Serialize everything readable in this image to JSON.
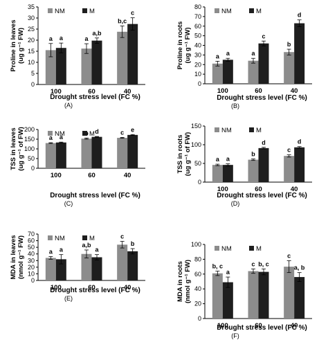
{
  "colors": {
    "NM": "#8c8c8c",
    "M": "#1e1e1e",
    "axis": "#000000"
  },
  "chart_data": [
    {
      "panel_label": "(A)",
      "type": "bar",
      "categories": [
        "100",
        "60",
        "40"
      ],
      "xlabel": "Drought stress level (FC %)",
      "ylabel": "Proline in leaves\n(ug g⁻¹ FW)",
      "ylim": [
        0,
        35
      ],
      "yticks": [
        0,
        5,
        10,
        15,
        20,
        25,
        30,
        35
      ],
      "legend": "top-left",
      "series": [
        {
          "name": "NM",
          "values": [
            15.5,
            16.2,
            23.8
          ],
          "errors": [
            3.0,
            2.2,
            2.6
          ],
          "letters": [
            "a",
            "a",
            "b,c"
          ]
        },
        {
          "name": "M",
          "values": [
            16.5,
            19.8,
            27.3
          ],
          "errors": [
            2.2,
            1.2,
            2.8
          ],
          "letters": [
            "a",
            "a,b",
            "c"
          ]
        }
      ]
    },
    {
      "panel_label": "(B)",
      "type": "bar",
      "categories": [
        "100",
        "60",
        "40"
      ],
      "xlabel": "Drought stress level (FC %)",
      "ylabel": "Proline in roots\n(ug g⁻¹ FW)",
      "ylim": [
        0,
        80
      ],
      "yticks": [
        0,
        10,
        20,
        30,
        40,
        50,
        60,
        70,
        80
      ],
      "legend": "top-left",
      "series": [
        {
          "name": "NM",
          "values": [
            21,
            24,
            33
          ],
          "errors": [
            2.5,
            2.5,
            3.0
          ],
          "letters": [
            "a",
            "a",
            "b"
          ]
        },
        {
          "name": "M",
          "values": [
            25,
            42,
            63
          ],
          "errors": [
            1.5,
            2.5,
            3.5
          ],
          "letters": [
            "a",
            "c",
            "d"
          ]
        }
      ]
    },
    {
      "panel_label": "(C)",
      "type": "bar",
      "categories": [
        "100",
        "60",
        "40"
      ],
      "xlabel": "Drought stress level (FC %)",
      "ylabel": "TSS in leaves\n(ug g⁻¹ of FW)",
      "ylim": [
        0,
        200
      ],
      "yticks": [
        0,
        50,
        100,
        150,
        200
      ],
      "legend": "top-left",
      "series": [
        {
          "name": "NM",
          "values": [
            130,
            153,
            157
          ],
          "errors": [
            2,
            3,
            2
          ],
          "letters": [
            "a",
            "b",
            "c"
          ]
        },
        {
          "name": "M",
          "values": [
            133,
            162,
            172
          ],
          "errors": [
            2,
            2,
            2
          ],
          "letters": [
            "a",
            "d",
            "e"
          ]
        }
      ]
    },
    {
      "panel_label": "(D)",
      "type": "bar",
      "categories": [
        "100",
        "60",
        "40"
      ],
      "xlabel": "Drought stress level (FC %)",
      "ylabel": "TSS in roots\n(ug g⁻¹ of FW)",
      "ylim": [
        0,
        150
      ],
      "yticks": [
        0,
        50,
        100,
        150
      ],
      "legend": "top-left",
      "series": [
        {
          "name": "NM",
          "values": [
            46,
            60,
            70
          ],
          "errors": [
            2,
            2,
            3
          ],
          "letters": [
            "a",
            "b",
            "c"
          ]
        },
        {
          "name": "M",
          "values": [
            46,
            91,
            93
          ],
          "errors": [
            3,
            2,
            2
          ],
          "letters": [
            "a",
            "d",
            "d"
          ]
        }
      ]
    },
    {
      "panel_label": "(E)",
      "type": "bar",
      "categories": [
        "100",
        "60",
        "40"
      ],
      "xlabel": "Drought stress level (FC %)",
      "ylabel": "MDA in leaves\n(nmol g⁻¹ FW)",
      "ylim": [
        0,
        70
      ],
      "yticks": [
        0,
        10,
        20,
        30,
        40,
        50,
        60,
        70
      ],
      "legend": "top-left",
      "series": [
        {
          "name": "NM",
          "values": [
            34,
            40,
            54
          ],
          "errors": [
            2,
            6,
            5
          ],
          "letters": [
            "a",
            "a,b",
            "c"
          ]
        },
        {
          "name": "M",
          "values": [
            32,
            35,
            44
          ],
          "errors": [
            7,
            4,
            4
          ],
          "letters": [
            "a",
            "a",
            "b"
          ]
        }
      ]
    },
    {
      "panel_label": "(F)",
      "type": "bar",
      "categories": [
        "100",
        "60",
        "40"
      ],
      "xlabel": "Drought stress level (FC %)",
      "ylabel": "MDA in roots\n(nmol g⁻¹ FW)",
      "ylim": [
        0,
        100
      ],
      "yticks": [
        0,
        20,
        40,
        60,
        80,
        100
      ],
      "legend": "top-left",
      "series": [
        {
          "name": "NM",
          "values": [
            61,
            64,
            70
          ],
          "errors": [
            3,
            3,
            8
          ],
          "letters": [
            "b, c",
            "c",
            "c"
          ]
        },
        {
          "name": "M",
          "values": [
            49,
            63,
            56
          ],
          "errors": [
            7,
            4,
            6
          ],
          "letters": [
            "a",
            "b, c",
            "a, b"
          ]
        }
      ]
    }
  ]
}
